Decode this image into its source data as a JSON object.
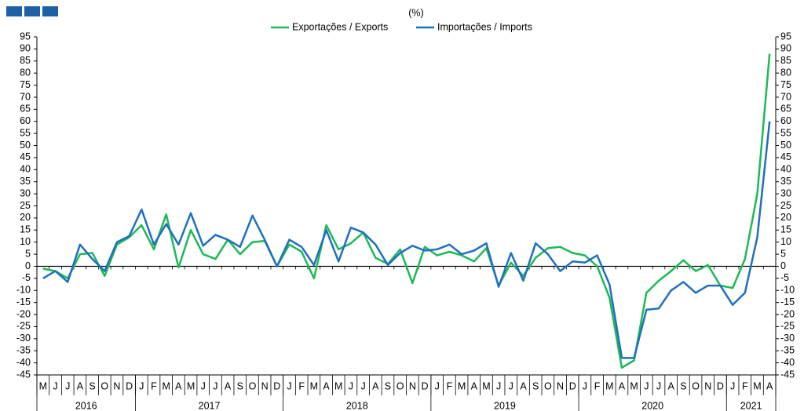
{
  "chart_data": {
    "type": "line",
    "title": "(%)",
    "categories": [
      "M",
      "J",
      "J",
      "A",
      "S",
      "O",
      "N",
      "D",
      "J",
      "F",
      "M",
      "A",
      "M",
      "J",
      "J",
      "A",
      "S",
      "O",
      "N",
      "D",
      "J",
      "F",
      "M",
      "A",
      "M",
      "J",
      "J",
      "A",
      "S",
      "O",
      "N",
      "D",
      "J",
      "F",
      "M",
      "A",
      "M",
      "J",
      "J",
      "A",
      "S",
      "O",
      "N",
      "D",
      "J",
      "F",
      "M",
      "A",
      "M",
      "J",
      "J",
      "A",
      "S",
      "O",
      "N",
      "D",
      "J",
      "F",
      "M",
      "A"
    ],
    "year_labels": [
      "2016",
      "2017",
      "2018",
      "2019",
      "2020",
      "2021"
    ],
    "series": [
      {
        "name": "Exportações / Exports",
        "color": "#1db954",
        "values": [
          -1,
          -2,
          -5,
          5,
          5.5,
          -4,
          9,
          12,
          17,
          7,
          21.5,
          -0.5,
          15,
          5,
          3,
          11,
          5,
          10,
          10.5,
          0,
          9,
          6,
          -5,
          17,
          7,
          9.5,
          14,
          3.5,
          1,
          7,
          -7,
          8,
          4.5,
          6,
          4.5,
          2,
          7.5,
          -8,
          1.5,
          -4,
          3.5,
          7.5,
          8,
          5.5,
          4.5,
          0,
          -13,
          -42,
          -39,
          -11,
          -6,
          -2,
          2.5,
          -2,
          0.5,
          -8,
          -9,
          3,
          30,
          88
        ]
      },
      {
        "name": "Importações / Imports",
        "color": "#1f6fc1",
        "values": [
          -5,
          -2,
          -6.5,
          9,
          3,
          -2,
          10,
          12.5,
          23.5,
          9,
          17.5,
          9,
          22,
          8.5,
          13,
          11,
          8,
          21,
          11,
          0,
          11,
          8,
          0.5,
          15,
          2,
          16,
          14,
          9,
          0.5,
          5.5,
          8.5,
          6.5,
          7,
          9,
          5,
          6.5,
          9.5,
          -8.5,
          5.5,
          -6,
          9.5,
          5,
          -2,
          2,
          1.5,
          4.5,
          -7.5,
          -38,
          -38,
          -18,
          -17.5,
          -10,
          -6.5,
          -11,
          -8,
          -8,
          -16,
          -11,
          12,
          60
        ]
      }
    ],
    "ylim": [
      -45,
      95
    ],
    "yticks": [
      -45,
      -40,
      -35,
      -30,
      -25,
      -20,
      -15,
      -10,
      -5,
      0,
      5,
      10,
      15,
      20,
      25,
      30,
      35,
      40,
      45,
      50,
      55,
      60,
      65,
      70,
      75,
      80,
      85,
      90,
      95
    ],
    "y2lim": [
      -45,
      95
    ],
    "y2ticks": [
      -45,
      -40,
      -35,
      -30,
      -25,
      -20,
      -15,
      -10,
      -5,
      0,
      5,
      10,
      15,
      20,
      25,
      30,
      35,
      40,
      45,
      50,
      55,
      60,
      65,
      70,
      75,
      80,
      85,
      90,
      95
    ]
  }
}
